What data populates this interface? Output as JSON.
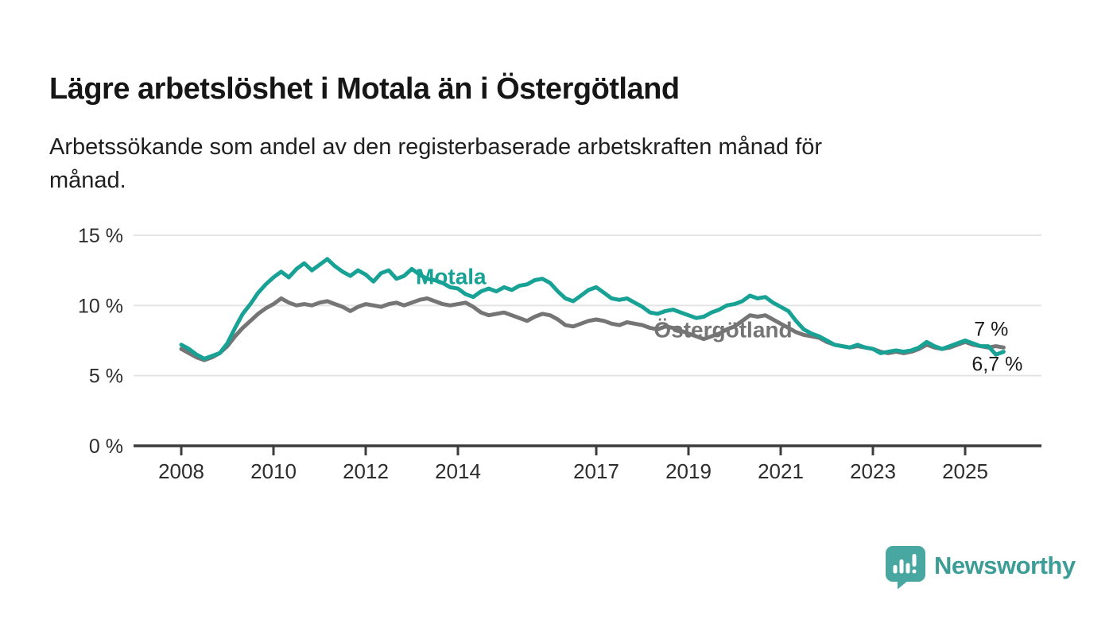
{
  "header": {
    "subtitle_line1": "Arbetssökande som andel av den registerbaserade arbetskraften månad för",
    "subtitle_line2": "månad."
  },
  "chart_data": {
    "type": "line",
    "title": "Lägre arbetslöshet i Motala än i Östergötland",
    "subtitle": "Arbetssökande som andel av den registerbaserade arbetskraften månad för månad.",
    "x_unit": "year",
    "x_start": 2008.0,
    "x_step": 0.16667,
    "xlim": [
      2006.95,
      2026.65
    ],
    "ylim": [
      0,
      16.3
    ],
    "xticks": [
      "2008",
      "2010",
      "2012",
      "2014",
      "2017",
      "2019",
      "2021",
      "2023",
      "2025"
    ],
    "xtick_years": [
      2008,
      2010,
      2012,
      2014,
      2017,
      2019,
      2021,
      2023,
      2025
    ],
    "ytick_values": [
      0,
      5,
      10,
      15
    ],
    "ytick_labels": [
      "0 %",
      "5 %",
      "10 %",
      "15 %"
    ],
    "grid": "horizontal",
    "legend_position": "inline-series-labels",
    "colors": {
      "motala": "#17a295",
      "ostergotland": "#757575",
      "axis": "#3c3c3c",
      "gridline": "#e4e4e4",
      "tick_text": "#2d2d2d",
      "end_label_text": "#1a1a1a"
    },
    "series": [
      {
        "name": "Östergötland",
        "color": "#757575",
        "end_label": "7 %",
        "end_value": 7.0,
        "values": [
          6.9,
          6.6,
          6.3,
          6.1,
          6.3,
          6.6,
          7.1,
          7.8,
          8.4,
          8.9,
          9.4,
          9.8,
          10.1,
          10.5,
          10.2,
          10.0,
          10.1,
          10.0,
          10.2,
          10.3,
          10.1,
          9.9,
          9.6,
          9.9,
          10.1,
          10.0,
          9.9,
          10.1,
          10.2,
          10.0,
          10.2,
          10.4,
          10.5,
          10.3,
          10.1,
          10.0,
          10.1,
          10.2,
          9.9,
          9.5,
          9.3,
          9.4,
          9.5,
          9.3,
          9.1,
          8.9,
          9.2,
          9.4,
          9.3,
          9.0,
          8.6,
          8.5,
          8.7,
          8.9,
          9.0,
          8.9,
          8.7,
          8.6,
          8.8,
          8.7,
          8.6,
          8.4,
          8.3,
          8.5,
          8.4,
          8.2,
          8.0,
          7.8,
          7.6,
          7.8,
          8.0,
          8.3,
          8.5,
          8.9,
          9.3,
          9.2,
          9.3,
          9.0,
          8.7,
          8.4,
          8.1,
          7.9,
          7.8,
          7.7,
          7.4,
          7.2,
          7.1,
          7.0,
          7.1,
          7.0,
          6.9,
          6.7,
          6.6,
          6.7,
          6.6,
          6.7,
          6.9,
          7.2,
          7.0,
          6.9,
          7.0,
          7.2,
          7.4,
          7.2,
          7.1,
          7.0,
          7.1,
          7.0
        ]
      },
      {
        "name": "Motala",
        "color": "#17a295",
        "end_label": "6,7 %",
        "end_value": 6.7,
        "values": [
          7.2,
          6.9,
          6.5,
          6.2,
          6.4,
          6.6,
          7.3,
          8.4,
          9.4,
          10.1,
          10.9,
          11.5,
          12.0,
          12.4,
          12.0,
          12.6,
          13.0,
          12.5,
          12.9,
          13.3,
          12.8,
          12.4,
          12.1,
          12.5,
          12.2,
          11.7,
          12.3,
          12.5,
          11.9,
          12.1,
          12.6,
          12.2,
          11.9,
          11.8,
          11.6,
          11.3,
          11.2,
          10.8,
          10.6,
          11.0,
          11.2,
          11.0,
          11.3,
          11.1,
          11.4,
          11.5,
          11.8,
          11.9,
          11.6,
          11.0,
          10.5,
          10.3,
          10.7,
          11.1,
          11.3,
          10.9,
          10.5,
          10.4,
          10.5,
          10.2,
          9.9,
          9.5,
          9.4,
          9.6,
          9.7,
          9.5,
          9.3,
          9.1,
          9.2,
          9.5,
          9.7,
          10.0,
          10.1,
          10.3,
          10.7,
          10.5,
          10.6,
          10.2,
          9.9,
          9.6,
          8.9,
          8.3,
          8.0,
          7.8,
          7.5,
          7.2,
          7.1,
          7.0,
          7.2,
          7.0,
          6.9,
          6.6,
          6.7,
          6.8,
          6.7,
          6.8,
          7.0,
          7.4,
          7.1,
          6.9,
          7.1,
          7.3,
          7.5,
          7.3,
          7.1,
          7.1,
          6.5,
          6.7
        ]
      }
    ]
  },
  "logo": {
    "wordmark": "Newsworthy",
    "icon": "speech-bubble-bar-chart",
    "bubble_color": "#48a7a0",
    "text_color": "#3c9d96"
  }
}
